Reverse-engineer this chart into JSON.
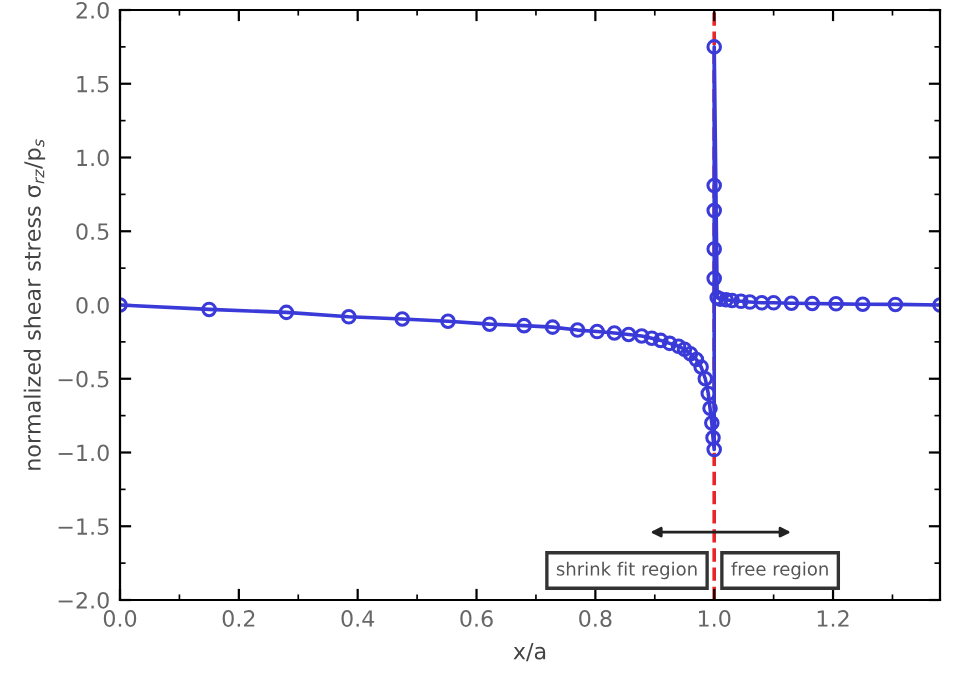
{
  "chart_data": {
    "type": "line",
    "xlabel": "x/a",
    "ylabel": "normalized shear stress σ$_{rz}$/p$_{s}$",
    "x": [
      0,
      0.15,
      0.28,
      0.385,
      0.475,
      0.552,
      0.622,
      0.68,
      0.728,
      0.77,
      0.803,
      0.832,
      0.856,
      0.878,
      0.895,
      0.91,
      0.925,
      0.94,
      0.95,
      0.96,
      0.97,
      0.978,
      0.985,
      0.99,
      0.993,
      0.996,
      0.998,
      1.0,
      1.0,
      1.0,
      1.0,
      1.0,
      1.0,
      1.005,
      1.01,
      1.02,
      1.03,
      1.045,
      1.06,
      1.08,
      1.1,
      1.13,
      1.165,
      1.205,
      1.25,
      1.305,
      1.38
    ],
    "series": [
      {
        "color": "#3a3ad8",
        "values": [
          0,
          -0.03,
          -0.05,
          -0.08,
          -0.095,
          -0.11,
          -0.13,
          -0.14,
          -0.15,
          -0.17,
          -0.18,
          -0.19,
          -0.2,
          -0.21,
          -0.225,
          -0.24,
          -0.26,
          -0.28,
          -0.3,
          -0.33,
          -0.37,
          -0.42,
          -0.5,
          -0.6,
          -0.7,
          -0.8,
          -0.9,
          -0.98,
          0.18,
          0.38,
          0.64,
          0.81,
          1.75,
          0.05,
          0.04,
          0.035,
          0.03,
          0.025,
          0.02,
          0.015,
          0.015,
          0.012,
          0.01,
          0.008,
          0.005,
          0.004,
          0
        ]
      }
    ],
    "marker": "circle",
    "xlim": [
      0,
      1.38
    ],
    "ylim": [
      -2.0,
      2.0
    ],
    "xticks": [
      {
        "value": 0,
        "label": "0.0"
      },
      0.2,
      0.4,
      0.6,
      0.8,
      {
        "value": 1,
        "label": "1.0"
      },
      1.2
    ],
    "yticks": [
      {
        "value": -2,
        "label": "−2.0"
      },
      {
        "value": -1.5,
        "label": "−1.5"
      },
      {
        "value": -1,
        "label": "−1.0"
      },
      {
        "value": -0.5,
        "label": "−0.5"
      },
      {
        "value": 0,
        "label": "0.0"
      },
      0.5,
      {
        "value": 1,
        "label": "1.0"
      },
      1.5,
      {
        "value": 2,
        "label": "2.0"
      }
    ],
    "ref_lines": [
      {
        "axis": "x",
        "value": 1.0,
        "color": "#e8262a",
        "line_style": "dashed"
      }
    ],
    "annotations": [
      "shrink fit region",
      "free region"
    ],
    "grid": false,
    "legend": false
  }
}
